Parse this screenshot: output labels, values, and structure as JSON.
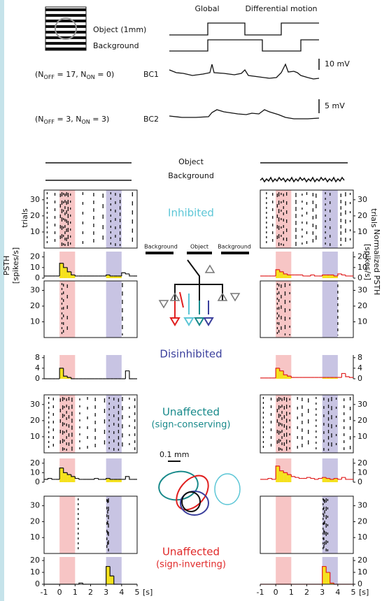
{
  "stimulus": {
    "object_label": "Object (1mm)",
    "background_label": "Background",
    "phase_global": "Global",
    "phase_differential": "Differential motion"
  },
  "cells": [
    {
      "n_parts": [
        "(N",
        "OFF",
        " = 17, N",
        "ON",
        " = 0)"
      ],
      "name": "BC1",
      "scale": "10 mV"
    },
    {
      "n_parts": [
        "(N",
        "OFF",
        " = 3, N",
        "ON",
        " = 3)"
      ],
      "name": "BC2",
      "scale": "5 mV"
    }
  ],
  "legend": {
    "object": "Object",
    "background": "Background"
  },
  "circuit": {
    "labels": [
      "Background",
      "Object",
      "Background"
    ],
    "scale": "0.1 mm"
  },
  "axes": {
    "trials_label": "trials",
    "psth_label": [
      "PSTH",
      "[spikes/s]"
    ],
    "norm_psth_label": [
      "Normalized PSTH",
      "[spikes/s]"
    ],
    "time_lim": [
      -1,
      5
    ],
    "time_ticks": [
      -1,
      0,
      1,
      2,
      3,
      4,
      5
    ],
    "time_unit": "[s]",
    "trial_lim": [
      0,
      36
    ],
    "trial_ticks": [
      10,
      20,
      30
    ],
    "psth_bins": [
      -1,
      -0.75,
      -0.5,
      -0.25,
      0,
      0.25,
      0.5,
      0.75,
      1,
      1.25,
      1.5,
      1.75,
      2,
      2.25,
      2.5,
      2.75,
      3,
      3.25,
      3.5,
      3.75,
      4,
      4.25,
      4.5,
      4.75,
      5
    ],
    "windows": [
      {
        "range": [
          0,
          1
        ],
        "color": "#f7c5c5"
      },
      {
        "range": [
          3,
          4
        ],
        "color": "#c8c4e3"
      }
    ],
    "fill_color": "#f5e21c"
  },
  "rows": [
    {
      "label": "Inhibited",
      "color": "#5cc6d6",
      "psth_lim": [
        0,
        25
      ],
      "psth_ticks": [
        0,
        10,
        20
      ],
      "left": {
        "color": "#111111",
        "spikes": [
          -0.8,
          -0.3,
          0.05,
          0.15,
          0.25,
          0.35,
          0.45,
          0.55,
          0.7,
          1.5,
          2.2,
          2.8,
          3.3,
          3.6,
          3.9,
          4.7
        ],
        "psth": [
          2,
          2,
          2,
          2,
          14,
          10,
          6,
          3,
          2,
          2,
          2,
          2,
          2,
          2,
          2,
          2,
          3,
          2,
          2,
          2,
          5,
          4,
          2,
          2
        ]
      },
      "right": {
        "color": "#e02020",
        "spikes": [
          -0.6,
          -0.2,
          0.1,
          0.2,
          0.35,
          0.5,
          0.7,
          1.3,
          1.7,
          2.0,
          2.4,
          2.6,
          3.2,
          3.5,
          4.2,
          4.5,
          4.8
        ],
        "psth": [
          2,
          2,
          2,
          2,
          8,
          6,
          4,
          3,
          3,
          3,
          3,
          2,
          2,
          3,
          2,
          2,
          3,
          3,
          3,
          2,
          4,
          3,
          2,
          2
        ]
      }
    },
    {
      "label": "Disinhibited",
      "color": "#3a3f9c",
      "psth_lim": [
        0,
        9
      ],
      "psth_ticks": [
        0,
        4,
        8
      ],
      "left": {
        "color": "#111111",
        "spikes": [
          0.15,
          0.25,
          0.5,
          4.05
        ],
        "psth": [
          0,
          0,
          0,
          0,
          4,
          1,
          0.5,
          0,
          0,
          0,
          0,
          0,
          0,
          0,
          0,
          0,
          0,
          0,
          0,
          0,
          0,
          3,
          0,
          0
        ]
      },
      "right": {
        "color": "#e02020",
        "spikes": [
          0.1,
          0.2,
          0.35,
          0.6,
          0.9,
          4.0
        ],
        "psth": [
          0.3,
          0.3,
          0.3,
          0.3,
          4,
          3,
          1.5,
          1,
          0.5,
          0.5,
          0.5,
          0.5,
          0.5,
          0.5,
          0.5,
          0.5,
          0.5,
          0.5,
          0.5,
          0.5,
          0.5,
          2,
          0.8,
          0.5
        ]
      }
    },
    {
      "label": "Unaffected",
      "sublabel": "(sign-conserving)",
      "color": "#17898a",
      "psth_lim": [
        0,
        25
      ],
      "psth_ticks": [
        0,
        10,
        20
      ],
      "left": {
        "color": "#111111",
        "spikes": [
          -0.7,
          -0.4,
          0.05,
          0.2,
          0.3,
          0.45,
          0.6,
          0.8,
          1.3,
          1.8,
          2.3,
          2.9,
          3.2,
          3.5,
          3.8,
          4.05,
          4.5,
          4.85
        ],
        "psth": [
          3,
          4,
          3,
          3,
          15,
          10,
          8,
          6,
          4,
          3,
          3,
          3,
          3,
          4,
          3,
          3,
          4,
          3,
          3,
          3,
          3,
          6,
          3,
          3
        ]
      },
      "right": {
        "color": "#e02020",
        "spikes": [
          -0.8,
          -0.3,
          0.1,
          0.2,
          0.3,
          0.4,
          0.55,
          0.7,
          0.9,
          1.4,
          1.7,
          2.1,
          2.6,
          3.1,
          3.4,
          3.6,
          3.9,
          4.4,
          4.8
        ],
        "psth": [
          3,
          3,
          4,
          3,
          17,
          12,
          10,
          8,
          6,
          5,
          4,
          4,
          5,
          4,
          3,
          4,
          5,
          4,
          3,
          4,
          3,
          5,
          3,
          3
        ]
      }
    },
    {
      "label": "Unaffected",
      "sublabel": "(sign-inverting)",
      "color": "#e02828",
      "psth_lim": [
        0,
        23
      ],
      "psth_ticks": [
        0,
        10,
        20
      ],
      "left": {
        "color": "#111111",
        "spikes": [
          1.2,
          3.05,
          3.1,
          3.15
        ],
        "psth": [
          0,
          0,
          0,
          0,
          0,
          0,
          0,
          0,
          0,
          1,
          0,
          0,
          0,
          0,
          0,
          0,
          15,
          7,
          0,
          0,
          0,
          0,
          0,
          0
        ]
      },
      "right": {
        "color": "#e02020",
        "spikes": [
          3.05,
          3.1,
          3.15,
          3.25,
          3.35
        ],
        "psth": [
          0,
          0,
          0,
          0,
          0,
          0,
          0,
          0,
          0,
          0,
          0,
          0,
          0,
          0,
          0,
          0,
          15,
          10,
          1,
          0,
          0,
          0,
          0,
          0
        ]
      }
    }
  ]
}
